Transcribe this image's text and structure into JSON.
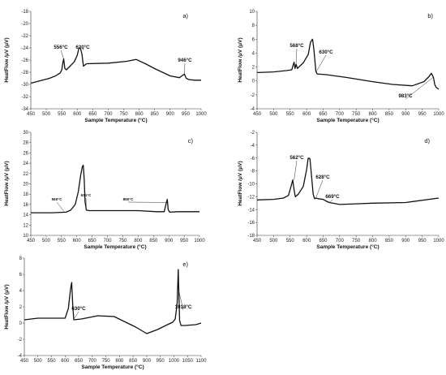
{
  "chart_data": [
    {
      "type": "line",
      "panel_label": "a)",
      "xlabel": "Sample Temperature (°C)",
      "ylabel": "HeatFlow /μV (μV)",
      "xlim": [
        450,
        1000
      ],
      "ylim": [
        -34,
        -18
      ],
      "xticks": [
        "450",
        "500",
        "550",
        "600",
        "650",
        "700",
        "750",
        "800",
        "850",
        "900",
        "950",
        "1000"
      ],
      "yticks": [
        "-34",
        "-32",
        "-30",
        "-28",
        "-26",
        "-24",
        "-22",
        "-20",
        "-18"
      ],
      "x": [
        450,
        480,
        510,
        530,
        545,
        550,
        553,
        556,
        560,
        565,
        590,
        600,
        605,
        610,
        615,
        620,
        625,
        630,
        700,
        760,
        790,
        820,
        850,
        900,
        930,
        938,
        946,
        952,
        960,
        980,
        1000
      ],
      "y": [
        -29.8,
        -29.4,
        -29.0,
        -28.6,
        -28.1,
        -27.6,
        -26.6,
        -25.8,
        -27.4,
        -27.6,
        -26.3,
        -25.2,
        -24.1,
        -24.0,
        -25.0,
        -27.0,
        -26.8,
        -26.6,
        -26.5,
        -26.2,
        -25.9,
        -26.6,
        -27.4,
        -28.6,
        -28.9,
        -28.6,
        -28.3,
        -29.0,
        -29.2,
        -29.3,
        -29.3
      ],
      "annotations": [
        {
          "text": "556°C",
          "x": 556,
          "y": -25.8
        },
        {
          "text": "620°C",
          "x": 620,
          "y": -24.0
        },
        {
          "text": "946°C",
          "x": 946,
          "y": -28.3
        }
      ]
    },
    {
      "type": "line",
      "panel_label": "b)",
      "xlabel": "Sample Temperature (°C)",
      "ylabel": "HeatFlow /μV (μV)",
      "xlim": [
        450,
        1000
      ],
      "ylim": [
        -4,
        10
      ],
      "xticks": [
        "450",
        "500",
        "550",
        "600",
        "650",
        "700",
        "750",
        "800",
        "850",
        "900",
        "950",
        "1000"
      ],
      "yticks": [
        "-4",
        "-2",
        "0",
        "2",
        "4",
        "6",
        "8",
        "10"
      ],
      "x": [
        450,
        500,
        540,
        555,
        562,
        565,
        568,
        572,
        590,
        605,
        612,
        618,
        622,
        628,
        632,
        660,
        720,
        800,
        860,
        920,
        955,
        970,
        978,
        984,
        988,
        992,
        1000
      ],
      "y": [
        1.2,
        1.3,
        1.5,
        1.6,
        2.7,
        1.8,
        2.4,
        1.8,
        2.6,
        3.8,
        5.6,
        6.0,
        4.5,
        1.4,
        1.0,
        0.9,
        0.5,
        -0.1,
        -0.5,
        -0.7,
        -0.1,
        0.6,
        1.1,
        0.5,
        -0.5,
        -0.9,
        -1.2
      ],
      "annotations": [
        {
          "text": "568°C",
          "x": 568,
          "y": 2.4
        },
        {
          "text": "630°C",
          "x": 630,
          "y": 1.4
        },
        {
          "text": "983°C",
          "x": 983,
          "y": 0.5
        }
      ]
    },
    {
      "type": "line",
      "panel_label": "c)",
      "xlabel": "Sample Temperature (°C)",
      "ylabel": "HeatFlow /μV (μV)",
      "xlim": [
        450,
        1000
      ],
      "ylim": [
        10,
        30
      ],
      "xticks": [
        "450",
        "500",
        "550",
        "600",
        "650",
        "700",
        "750",
        "800",
        "850",
        "900",
        "950",
        "1000"
      ],
      "yticks": [
        "10",
        "12",
        "14",
        "16",
        "18",
        "20",
        "22",
        "24",
        "26",
        "28",
        "30"
      ],
      "x": [
        450,
        520,
        565,
        580,
        595,
        605,
        612,
        618,
        621,
        624,
        627,
        631,
        640,
        700,
        800,
        860,
        885,
        892,
        895,
        898,
        903,
        930,
        1000
      ],
      "y": [
        14.4,
        14.4,
        14.5,
        14.9,
        16.0,
        18.5,
        21.5,
        23.3,
        23.6,
        21.0,
        16.5,
        14.9,
        14.8,
        14.8,
        14.8,
        14.6,
        14.6,
        16.4,
        17.0,
        15.0,
        14.5,
        14.6,
        14.6
      ],
      "annotations": [
        {
          "text": "560°C",
          "x": 560,
          "y": 14.5
        },
        {
          "text": "631°C",
          "x": 631,
          "y": 14.9
        },
        {
          "text": "890°C",
          "x": 890,
          "y": 16.4
        }
      ]
    },
    {
      "type": "line",
      "panel_label": "d)",
      "xlabel": "Sample Temperature (°C)",
      "ylabel": "HeatFlow /μV (μV)",
      "xlim": [
        450,
        1000
      ],
      "ylim": [
        -18,
        -2
      ],
      "xticks": [
        "450",
        "500",
        "550",
        "600",
        "650",
        "700",
        "750",
        "800",
        "850",
        "900",
        "950",
        "1000"
      ],
      "yticks": [
        "-18",
        "-16",
        "-14",
        "-12",
        "-10",
        "-8",
        "-6",
        "-4",
        "-2"
      ],
      "x": [
        450,
        500,
        530,
        545,
        553,
        558,
        562,
        566,
        575,
        590,
        600,
        605,
        610,
        615,
        620,
        624,
        628,
        635,
        650,
        660,
        669,
        700,
        750,
        800,
        900,
        1000
      ],
      "y": [
        -12.5,
        -12.4,
        -12.2,
        -11.8,
        -10.4,
        -9.4,
        -10.9,
        -12.0,
        -11.6,
        -10.4,
        -7.8,
        -6.0,
        -6.1,
        -8.8,
        -11.6,
        -12.3,
        -12.2,
        -12.3,
        -12.4,
        -12.7,
        -12.9,
        -13.2,
        -13.1,
        -13.0,
        -12.9,
        -12.2
      ],
      "annotations": [
        {
          "text": "562°C",
          "x": 562,
          "y": -9.4
        },
        {
          "text": "628°C",
          "x": 628,
          "y": -12.2
        },
        {
          "text": "669°C",
          "x": 669,
          "y": -12.9
        }
      ]
    },
    {
      "type": "line",
      "panel_label": "e)",
      "xlabel": "Sample Temperature (°C)",
      "ylabel": "HeatFlow /μV (μV)",
      "xlim": [
        450,
        1100
      ],
      "ylim": [
        -4,
        8
      ],
      "xticks": [
        "450",
        "500",
        "550",
        "600",
        "650",
        "700",
        "750",
        "800",
        "850",
        "900",
        "950",
        "1000",
        "1050",
        "1100"
      ],
      "yticks": [
        "-4",
        "-2",
        "0",
        "2",
        "4",
        "6",
        "8"
      ],
      "x": [
        450,
        500,
        560,
        600,
        612,
        620,
        624,
        628,
        632,
        660,
        720,
        780,
        860,
        900,
        940,
        970,
        995,
        1005,
        1012,
        1016,
        1018,
        1021,
        1026,
        1040,
        1080,
        1100
      ],
      "y": [
        0.4,
        0.6,
        0.6,
        0.6,
        1.8,
        4.2,
        5.0,
        2.2,
        0.4,
        0.5,
        0.9,
        0.8,
        -0.5,
        -1.3,
        -0.8,
        -0.3,
        0.1,
        0.5,
        2.5,
        6.6,
        4.0,
        0.3,
        -0.3,
        -0.3,
        -0.2,
        0.0
      ],
      "annotations": [
        {
          "text": "630°C",
          "x": 630,
          "y": 0.4
        },
        {
          "text": "1018°C",
          "x": 1018,
          "y": 4.0
        }
      ]
    }
  ]
}
